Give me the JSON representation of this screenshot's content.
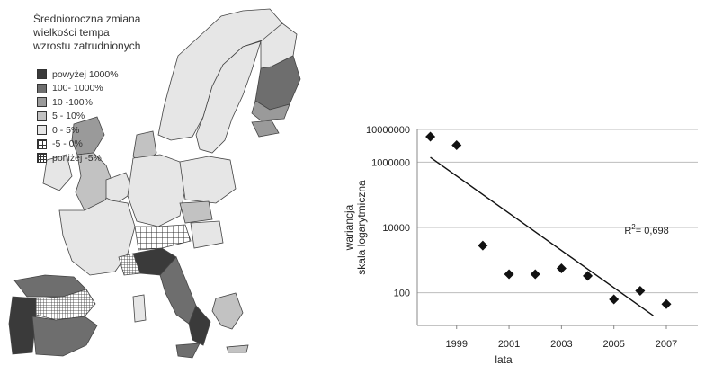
{
  "map": {
    "legend_title_lines": [
      "Średnioroczna zmiana",
      "wielkości tempa",
      "wzrostu zatrudnionych"
    ],
    "legend": [
      {
        "label": "powyżej 1000%",
        "pattern": "solid",
        "color": "#3a3a3a"
      },
      {
        "label": "100- 1000%",
        "pattern": "solid",
        "color": "#6e6e6e"
      },
      {
        "label": "10 -100%",
        "pattern": "solid",
        "color": "#9a9a9a"
      },
      {
        "label": "5 - 10%",
        "pattern": "solid",
        "color": "#c2c2c2"
      },
      {
        "label": "0 - 5%",
        "pattern": "solid",
        "color": "#e6e6e6"
      },
      {
        "label": "-5 - 0%",
        "pattern": "grid-coarse",
        "color": "#ffffff"
      },
      {
        "label": "poniżej -5%",
        "pattern": "grid-fine",
        "color": "#ffffff"
      }
    ]
  },
  "chart_data": {
    "type": "scatter",
    "log_scale_y": true,
    "ylim": [
      10,
      10000000
    ],
    "y_ticks": [
      100,
      10000,
      1000000,
      10000000
    ],
    "y_tick_labels": [
      "100",
      "10000",
      "1000000",
      "10000000"
    ],
    "x_ticks": [
      1999,
      2001,
      2003,
      2005,
      2007
    ],
    "x_tick_labels": [
      "1999",
      "2001",
      "2003",
      "2005",
      "2007"
    ],
    "xlim": [
      1997.5,
      2008.2
    ],
    "points": [
      {
        "x": 1998,
        "y": 6000000
      },
      {
        "x": 1999,
        "y": 3300000
      },
      {
        "x": 2000,
        "y": 2800
      },
      {
        "x": 2001,
        "y": 370
      },
      {
        "x": 2002,
        "y": 370
      },
      {
        "x": 2003,
        "y": 560
      },
      {
        "x": 2004,
        "y": 330
      },
      {
        "x": 2005,
        "y": 63
      },
      {
        "x": 2006,
        "y": 115
      },
      {
        "x": 2007,
        "y": 45
      }
    ],
    "trendline": {
      "x": [
        1998,
        2006.5
      ],
      "y": [
        1400000,
        20
      ]
    },
    "annotation": {
      "r2_prefix": "R",
      "r2_sup": "2",
      "r2_value": "= 0,698",
      "x": 2005.4,
      "y": 6500
    },
    "ylabel_line1": "wariancja",
    "ylabel_line2": "skala logarytmiczna",
    "xlabel": "lata",
    "grid": "horizontal"
  }
}
